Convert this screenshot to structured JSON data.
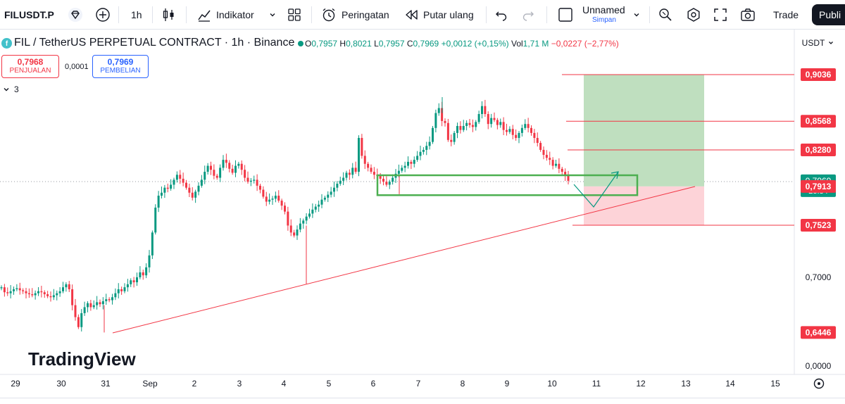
{
  "toolbar": {
    "symbol": "FILUSDT.P",
    "interval": "1h",
    "indicators_label": "Indikator",
    "alerts_label": "Peringatan",
    "replay_label": "Putar ulang",
    "layout_name": "Unnamed",
    "layout_status": "Simpan",
    "trade_label": "Trade",
    "publish_label": "Publi"
  },
  "legend": {
    "title": "FIL / TetherUS PERPETUAL CONTRACT · 1h · Binance",
    "open_key": "O",
    "open": "0,7957",
    "high_key": "H",
    "high": "0,8021",
    "low_key": "L",
    "low": "0,7957",
    "close_key": "C",
    "close": "0,7969",
    "change": "+0,0012 (+0,15%)",
    "vol_key": "Vol",
    "vol": "1,71 M",
    "vol_change": "−0,0227 (−2,77%)"
  },
  "currency": "USDT",
  "trade": {
    "sell_price": "0,7968",
    "sell_label": "PENJUALAN",
    "spread": "0,0001",
    "buy_price": "0,7969",
    "buy_label": "PEMBELIAN"
  },
  "indicator_count": "3",
  "watermark": "TradingView",
  "colors": {
    "up": "#089981",
    "down": "#f23645",
    "accent": "#2962ff",
    "profit_zone": "#bfdfbf",
    "loss_zone": "#fdd3d8",
    "box": "#4caf50"
  },
  "chart_data": {
    "type": "candlestick",
    "ylim": [
      0.0,
      1.0
    ],
    "x_ticks": [
      "29",
      "30",
      "31",
      "Sep",
      "2",
      "3",
      "4",
      "5",
      "6",
      "7",
      "8",
      "9",
      "10",
      "11",
      "12",
      "13",
      "14",
      "15"
    ],
    "y_ticks": [
      "0,7000",
      "0,0000"
    ],
    "price_labels": [
      {
        "value": "0,9036",
        "kind": "line"
      },
      {
        "value": "0,8568",
        "kind": "line"
      },
      {
        "value": "0,8280",
        "kind": "line"
      },
      {
        "value": "0,7969",
        "kind": "current",
        "timer": "23:34"
      },
      {
        "value": "0,7913",
        "kind": "line"
      },
      {
        "value": "0,7523",
        "kind": "line"
      },
      {
        "value": "0,6446",
        "kind": "low"
      }
    ],
    "horizontal_levels": [
      0.9036,
      0.8568,
      0.828,
      0.7523
    ],
    "position": {
      "entry": 0.7913,
      "target": 0.9036,
      "stop": 0.7523
    },
    "support_zone": {
      "top": 0.8025,
      "bottom": 0.7825
    },
    "trendline": {
      "from": {
        "date": "31",
        "price": 0.6446
      },
      "to": {
        "date": "13",
        "price": 0.7995
      }
    },
    "close": [
      0.69,
      0.685,
      0.684,
      0.686,
      0.688,
      0.689,
      0.687,
      0.686,
      0.684,
      0.683,
      0.682,
      0.684,
      0.686,
      0.685,
      0.683,
      0.681,
      0.68,
      0.682,
      0.684,
      0.686,
      0.69,
      0.693,
      0.688,
      0.672,
      0.66,
      0.65,
      0.664,
      0.67,
      0.674,
      0.67,
      0.672,
      0.675,
      0.673,
      0.676,
      0.678,
      0.677,
      0.68,
      0.684,
      0.688,
      0.686,
      0.69,
      0.693,
      0.697,
      0.695,
      0.7,
      0.705,
      0.702,
      0.71,
      0.722,
      0.745,
      0.77,
      0.782,
      0.785,
      0.79,
      0.789,
      0.793,
      0.798,
      0.803,
      0.799,
      0.795,
      0.79,
      0.785,
      0.78,
      0.786,
      0.792,
      0.798,
      0.806,
      0.812,
      0.808,
      0.802,
      0.8,
      0.81,
      0.818,
      0.815,
      0.809,
      0.805,
      0.812,
      0.814,
      0.808,
      0.8,
      0.796,
      0.797,
      0.798,
      0.792,
      0.788,
      0.781,
      0.776,
      0.778,
      0.779,
      0.782,
      0.777,
      0.772,
      0.766,
      0.752,
      0.745,
      0.742,
      0.748,
      0.754,
      0.757,
      0.761,
      0.764,
      0.768,
      0.771,
      0.773,
      0.778,
      0.78,
      0.783,
      0.786,
      0.79,
      0.794,
      0.797,
      0.8,
      0.805,
      0.803,
      0.81,
      0.806,
      0.84,
      0.822,
      0.814,
      0.81,
      0.806,
      0.803,
      0.802,
      0.799,
      0.796,
      0.793,
      0.796,
      0.8,
      0.804,
      0.807,
      0.81,
      0.812,
      0.816,
      0.814,
      0.818,
      0.822,
      0.826,
      0.828,
      0.832,
      0.836,
      0.85,
      0.865,
      0.87,
      0.857,
      0.855,
      0.838,
      0.836,
      0.845,
      0.852,
      0.848,
      0.852,
      0.855,
      0.853,
      0.851,
      0.856,
      0.864,
      0.872,
      0.864,
      0.854,
      0.86,
      0.858,
      0.853,
      0.856,
      0.848,
      0.846,
      0.849,
      0.843,
      0.84,
      0.845,
      0.85,
      0.854,
      0.85,
      0.845,
      0.84,
      0.835,
      0.828,
      0.823,
      0.82,
      0.818,
      0.812,
      0.814,
      0.809,
      0.806,
      0.802,
      0.7969
    ]
  }
}
